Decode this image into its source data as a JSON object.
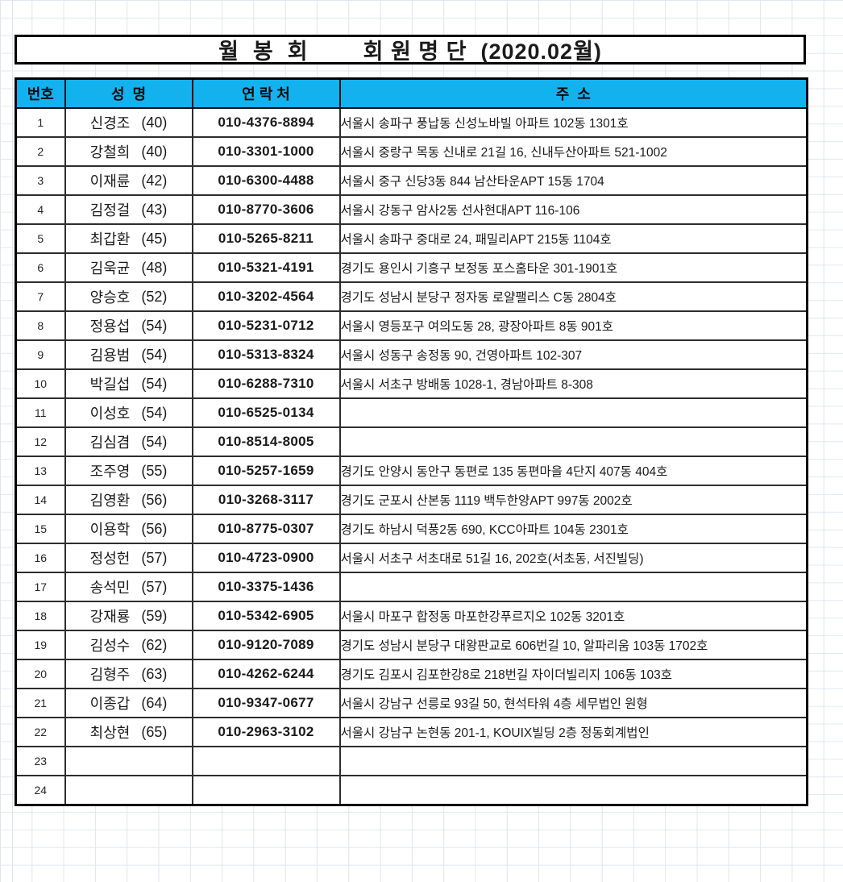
{
  "title": "월  봉  회        회 원 명 단  (2020.02월)",
  "header": {
    "no": "번호",
    "name": "성  명",
    "contact": "연 락 처",
    "address": "주  소"
  },
  "colors": {
    "header_bg": "#14B1EF",
    "outer_border": "#000000",
    "grid_line": "#dfe5ee"
  },
  "rows": [
    {
      "no": "1",
      "name": "신경조",
      "age": "(40)",
      "phone": "010-4376-8894",
      "address": "서울시 송파구 풍납동 신성노바빌 아파트 102동 1301호"
    },
    {
      "no": "2",
      "name": "강철희",
      "age": "(40)",
      "phone": "010-3301-1000",
      "address": "서울시 중랑구 목동 신내로 21길 16, 신내두산아파트 521-1002"
    },
    {
      "no": "3",
      "name": "이재륜",
      "age": "(42)",
      "phone": "010-6300-4488",
      "address": "서울시 중구 신당3동 844 남산타운APT 15동 1704"
    },
    {
      "no": "4",
      "name": "김정걸",
      "age": "(43)",
      "phone": "010-8770-3606",
      "address": "서울시 강동구 암사2동 선사현대APT 116-106"
    },
    {
      "no": "5",
      "name": "최갑환",
      "age": "(45)",
      "phone": "010-5265-8211",
      "address": "서울시 송파구 중대로 24,  패밀리APT 215동 1104호"
    },
    {
      "no": "6",
      "name": "김욱균",
      "age": "(48)",
      "phone": "010-5321-4191",
      "address": "경기도 용인시 기흥구 보정동 포스홈타운 301-1901호"
    },
    {
      "no": "7",
      "name": "양승호",
      "age": "(52)",
      "phone": "010-3202-4564",
      "address": "경기도 성남시 분당구 정자동 로얄팰리스 C동 2804호"
    },
    {
      "no": "8",
      "name": "정용섭",
      "age": "(54)",
      "phone": "010-5231-0712",
      "address": "서울시 영등포구 여의도동 28, 광장아파트 8동 901호"
    },
    {
      "no": "9",
      "name": "김용범",
      "age": "(54)",
      "phone": "010-5313-8324",
      "address": "서울시 성동구 송정동 90, 건영아파트 102-307"
    },
    {
      "no": "10",
      "name": "박길섭",
      "age": "(54)",
      "phone": "010-6288-7310",
      "address": "서울시 서초구 방배동 1028-1, 경남아파트 8-308"
    },
    {
      "no": "11",
      "name": "이성호",
      "age": "(54)",
      "phone": "010-6525-0134",
      "address": ""
    },
    {
      "no": "12",
      "name": "김심겸",
      "age": "(54)",
      "phone": "010-8514-8005",
      "address": ""
    },
    {
      "no": "13",
      "name": "조주영",
      "age": "(55)",
      "phone": "010-5257-1659",
      "address": "경기도 안양시 동안구 동편로 135 동편마을 4단지 407동 404호"
    },
    {
      "no": "14",
      "name": "김영환",
      "age": "(56)",
      "phone": "010-3268-3117",
      "address": "경기도 군포시 산본동 1119 백두한양APT 997동 2002호"
    },
    {
      "no": "15",
      "name": "이용학",
      "age": "(56)",
      "phone": "010-8775-0307",
      "address": "경기도 하남시 덕풍2동 690, KCC아파트 104동 2301호"
    },
    {
      "no": "16",
      "name": "정성헌",
      "age": "(57)",
      "phone": "010-4723-0900",
      "address": "서울시 서초구 서초대로 51길 16, 202호(서초동, 서진빌딩)"
    },
    {
      "no": "17",
      "name": "송석민",
      "age": "(57)",
      "phone": "010-3375-1436",
      "address": ""
    },
    {
      "no": "18",
      "name": "강재룡",
      "age": "(59)",
      "phone": "010-5342-6905",
      "address": "서울시 마포구 합정동 마포한강푸르지오 102동 3201호"
    },
    {
      "no": "19",
      "name": "김성수",
      "age": "(62)",
      "phone": "010-9120-7089",
      "address": "경기도 성남시 분당구 대왕판교로 606번길 10, 알파리움 103동 1702호"
    },
    {
      "no": "20",
      "name": "김형주",
      "age": "(63)",
      "phone": "010-4262-6244",
      "address": "경기도 김포시 김포한강8로 218번길 자이더빌리지 106동 103호"
    },
    {
      "no": "21",
      "name": "이종갑",
      "age": "(64)",
      "phone": "010-9347-0677",
      "address": "서울시 강남구 선릉로 93길 50, 현석타워 4층 세무법인 원형"
    },
    {
      "no": "22",
      "name": "최상현",
      "age": "(65)",
      "phone": "010-2963-3102",
      "address": "서울시 강남구 논현동 201-1, KOUIX빌딩 2층 정동회계법인"
    },
    {
      "no": "23",
      "name": "",
      "age": "",
      "phone": "",
      "address": ""
    },
    {
      "no": "24",
      "name": "",
      "age": "",
      "phone": "",
      "address": ""
    }
  ]
}
